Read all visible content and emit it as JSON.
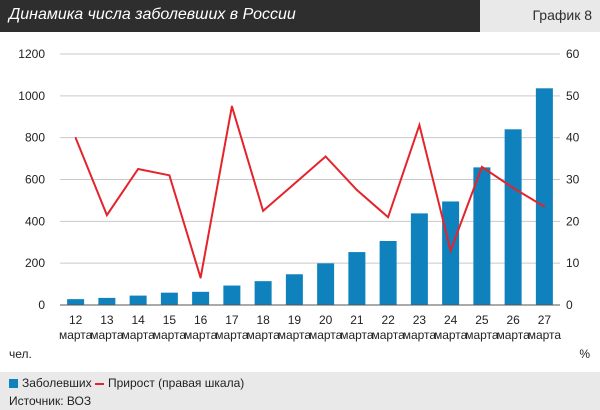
{
  "header": {
    "title": "Динамика числа заболевших в России",
    "chart_label": "График 8"
  },
  "legend": {
    "bar_label": "Заболевших",
    "line_label": "Прирост (правая шкала)"
  },
  "source": "Источник: ВОЗ",
  "colors": {
    "bar": "#0f82bd",
    "line": "#e5232b",
    "grid": "#c9c9c9",
    "title_bg": "#2e2e2e"
  },
  "chart_data": {
    "type": "bar",
    "title": "Динамика числа заболевших в России",
    "categories": [
      [
        "12",
        "марта"
      ],
      [
        "13",
        "марта"
      ],
      [
        "14",
        "марта"
      ],
      [
        "15",
        "марта"
      ],
      [
        "16",
        "марта"
      ],
      [
        "17",
        "марта"
      ],
      [
        "18",
        "марта"
      ],
      [
        "19",
        "марта"
      ],
      [
        "20",
        "марта"
      ],
      [
        "21",
        "марта"
      ],
      [
        "22",
        "марта"
      ],
      [
        "23",
        "марта"
      ],
      [
        "24",
        "марта"
      ],
      [
        "25",
        "марта"
      ],
      [
        "26",
        "марта"
      ],
      [
        "27",
        "марта"
      ]
    ],
    "series": [
      {
        "name": "Заболевших",
        "type": "bar",
        "axis": "left",
        "values": [
          28,
          34,
          45,
          59,
          63,
          93,
          114,
          147,
          199,
          253,
          306,
          438,
          495,
          658,
          840,
          1036
        ]
      },
      {
        "name": "Прирост (правая шкала)",
        "type": "line",
        "axis": "right",
        "values": [
          40,
          21.5,
          32.5,
          31,
          6.5,
          47.5,
          22.5,
          29,
          35.5,
          27.5,
          21,
          43,
          13,
          33,
          28,
          23.5
        ]
      }
    ],
    "ylim_left": [
      0,
      1200
    ],
    "yticks_left": [
      0,
      200,
      400,
      600,
      800,
      1000,
      1200
    ],
    "ylim_right": [
      0,
      60
    ],
    "yticks_right": [
      0,
      10,
      20,
      30,
      40,
      50,
      60
    ],
    "ylabel_left": "чел.",
    "ylabel_right": "%",
    "grid": true,
    "legend_position": "bottom-left"
  }
}
